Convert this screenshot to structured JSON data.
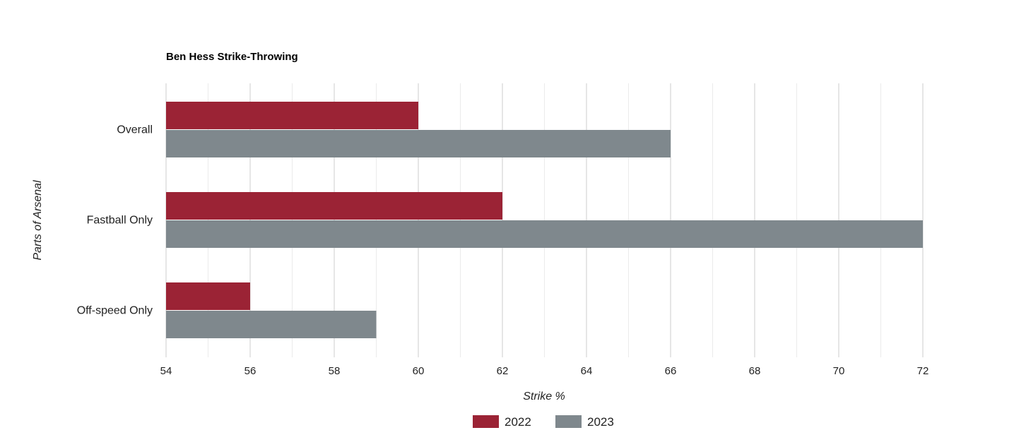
{
  "chart_data": {
    "type": "bar",
    "orientation": "horizontal",
    "title": "Ben Hess Strike-Throwing",
    "xlabel": "Strike %",
    "ylabel": "Parts of Arsenal",
    "categories": [
      "Overall",
      "Fastball Only",
      "Off-speed Only"
    ],
    "series": [
      {
        "name": "2022",
        "values": [
          60,
          62,
          56
        ],
        "color": "#9b2335"
      },
      {
        "name": "2023",
        "values": [
          66,
          72,
          59
        ],
        "color": "#7f888d"
      }
    ],
    "xlim": [
      54,
      72
    ],
    "xticks": [
      54,
      56,
      58,
      60,
      62,
      64,
      66,
      68,
      70,
      72
    ],
    "grid": true,
    "legend_position": "bottom"
  }
}
